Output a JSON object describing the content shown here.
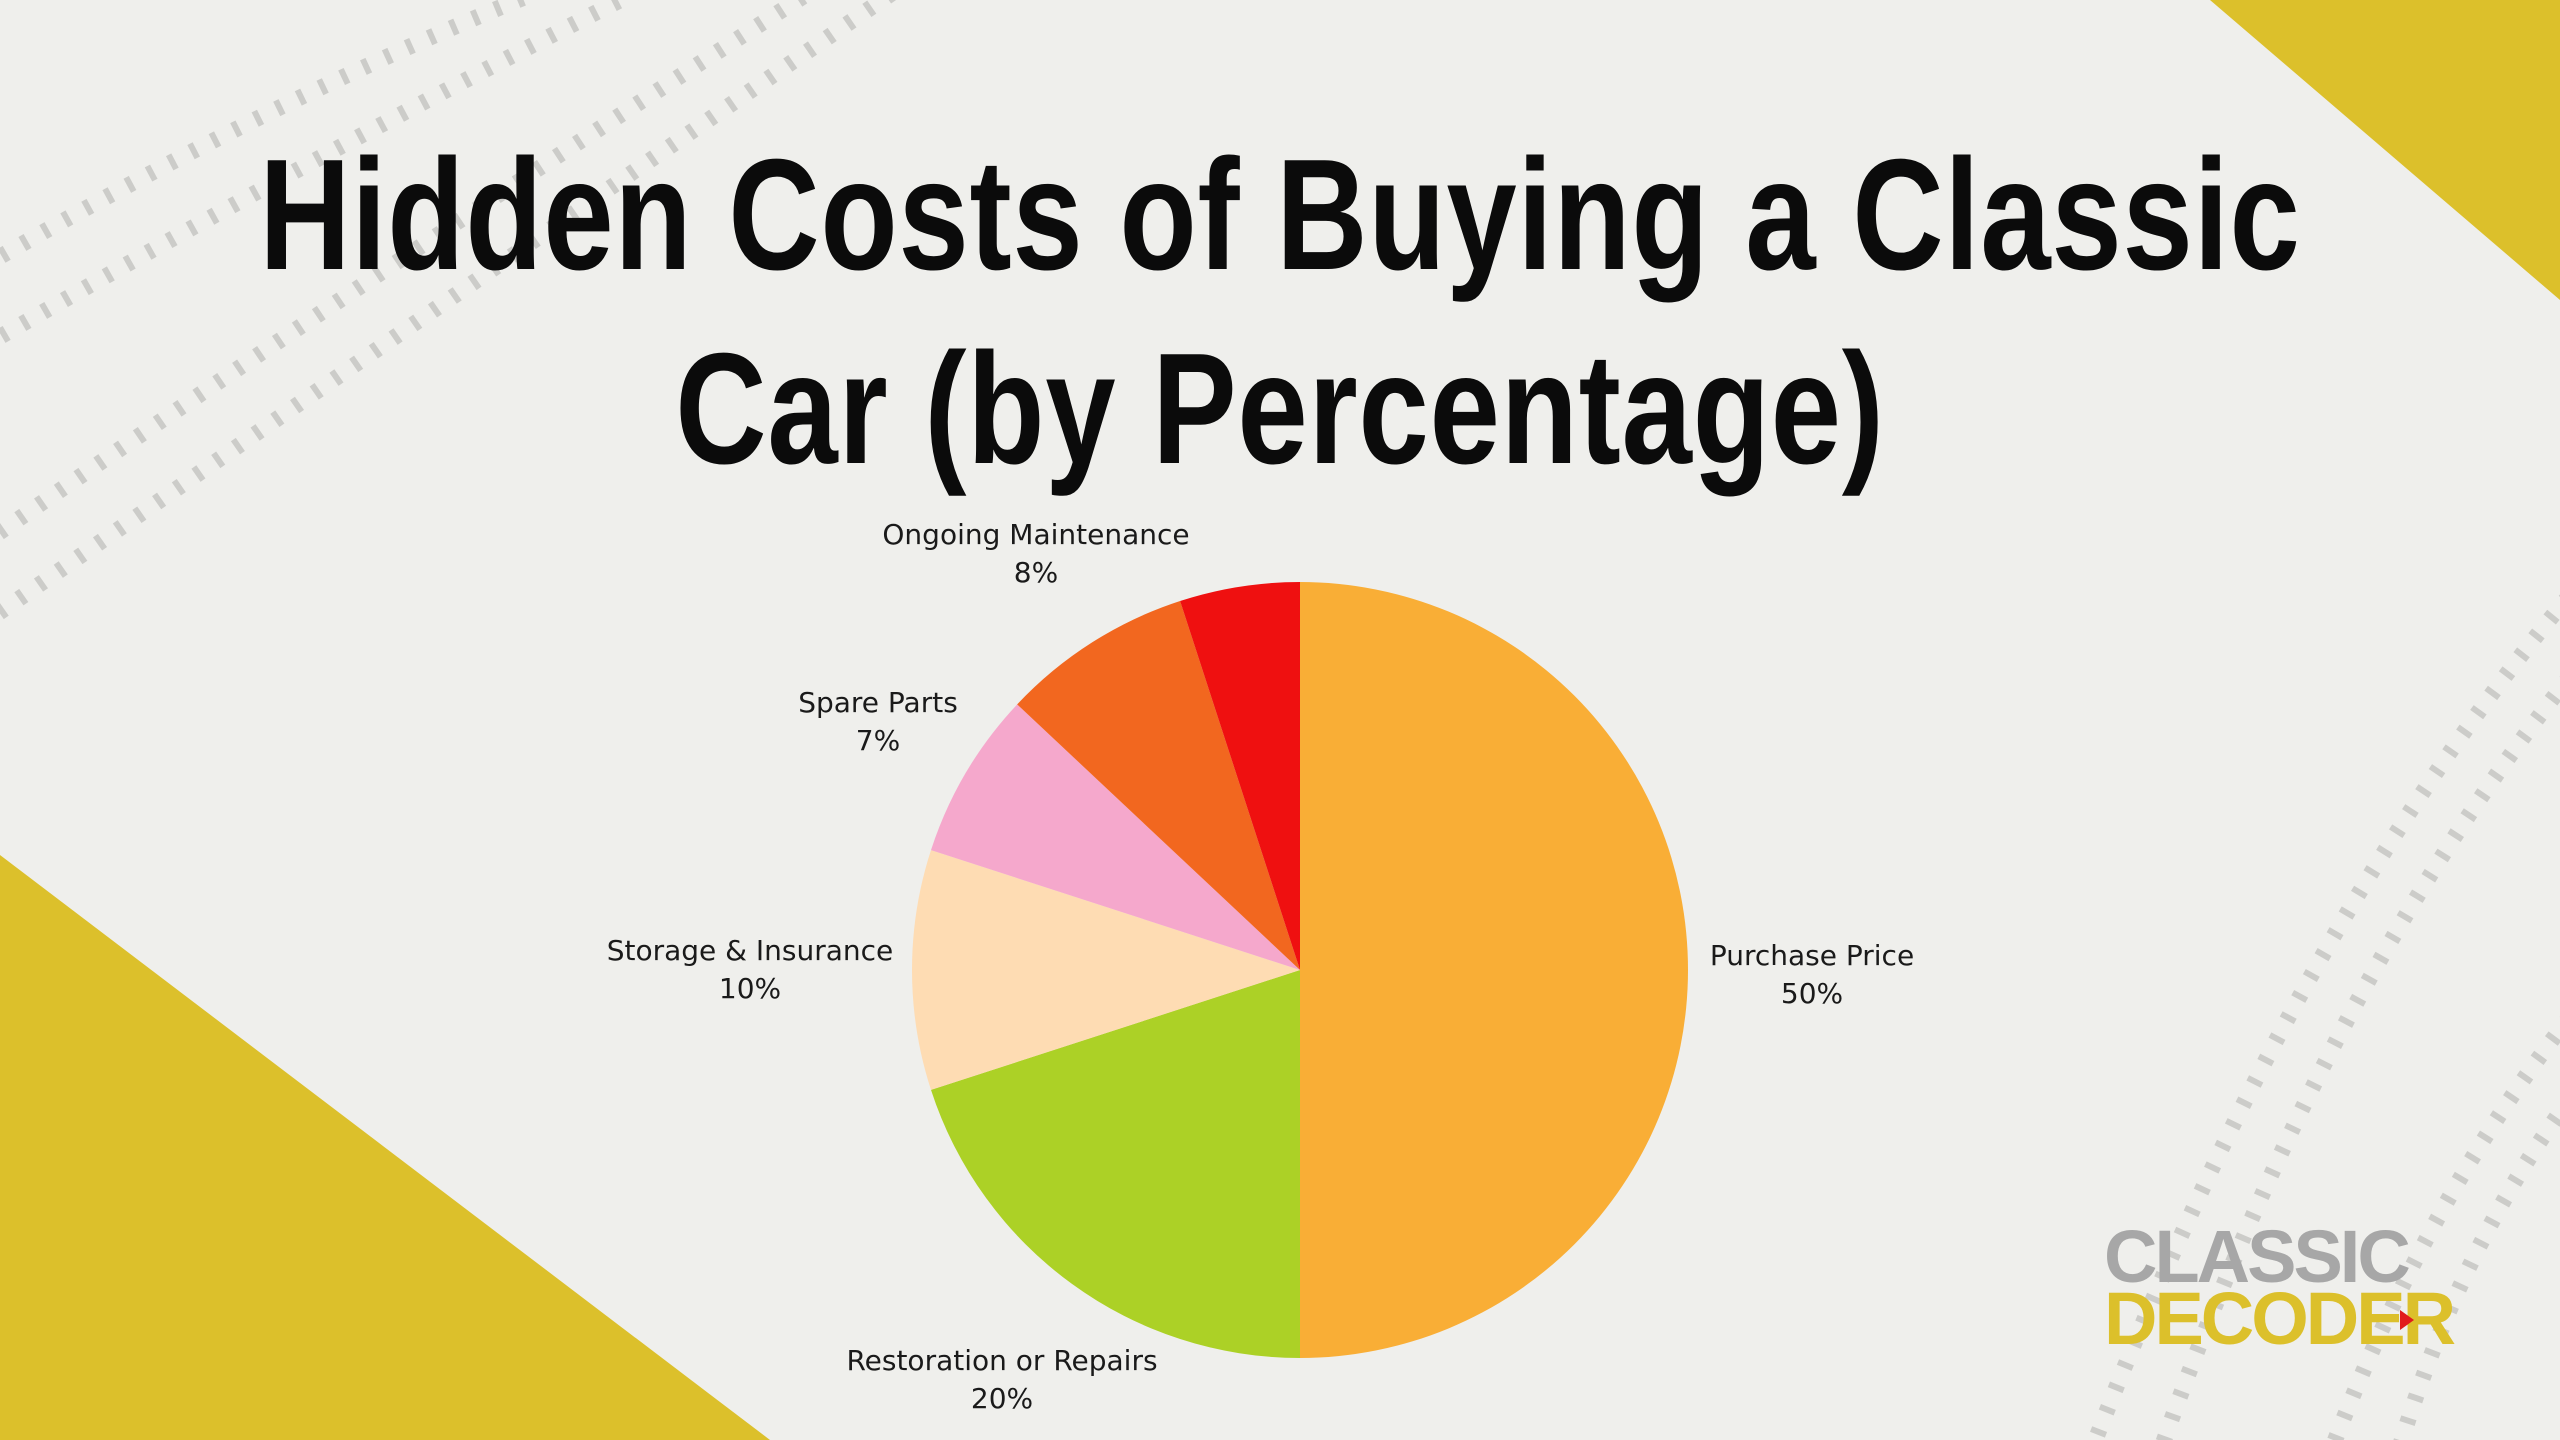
{
  "title": {
    "line1": "Hidden Costs of Buying a Classic",
    "line2": "Car (by Percentage)"
  },
  "logo": {
    "line1": "CLASSIC",
    "line2": "DECODER"
  },
  "colors": {
    "background": "#efefec",
    "accent_yellow": "#dcc02b",
    "tire_track": "#c9c9c6"
  },
  "chart_data": {
    "type": "pie",
    "start_angle_deg": 0,
    "direction": "clockwise",
    "slices": [
      {
        "label": "Purchase Price",
        "value": 50,
        "value_label": "50%",
        "color": "#f9ae36"
      },
      {
        "label": "Restoration or Repairs",
        "value": 20,
        "value_label": "20%",
        "color": "#acd126"
      },
      {
        "label": "Storage & Insurance",
        "value": 10,
        "value_label": "10%",
        "color": "#fedcb3"
      },
      {
        "label": "Spare Parts",
        "value": 7,
        "value_label": "7%",
        "color": "#f5a8cc"
      },
      {
        "label": "Ongoing Maintenance",
        "value": 8,
        "value_label": "8%",
        "color": "#f2671f"
      },
      {
        "label": "",
        "value": 5,
        "value_label": "",
        "color": "#ef1010"
      }
    ]
  }
}
